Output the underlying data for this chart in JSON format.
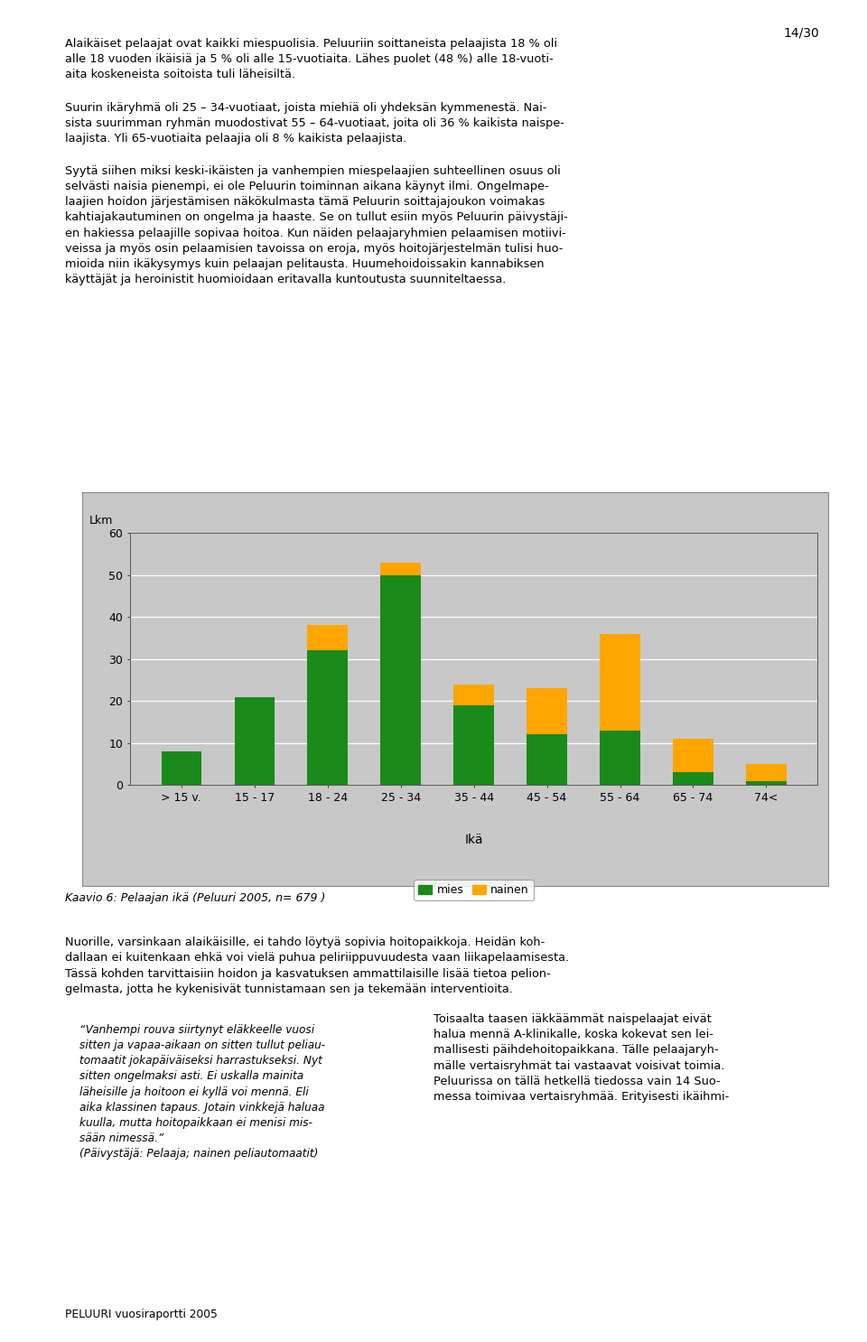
{
  "categories": [
    "> 15 v.",
    "15 - 17",
    "18 - 24",
    "25 - 34",
    "35 - 44",
    "45 - 54",
    "55 - 64",
    "65 - 74",
    "74<"
  ],
  "mies": [
    8,
    21,
    32,
    50,
    19,
    12,
    13,
    3,
    1
  ],
  "nainen": [
    0,
    0,
    6,
    3,
    5,
    11,
    23,
    8,
    4
  ],
  "color_mies": "#1a8a1a",
  "color_nainen": "#ffa500",
  "ylabel": "Lkm",
  "xlabel": "Ikä",
  "ylim_max": 60,
  "yticks": [
    0,
    10,
    20,
    30,
    40,
    50,
    60
  ],
  "legend_mies": "mies",
  "legend_nainen": "nainen",
  "chart_bg": "#c8c8c8",
  "bar_width": 0.55,
  "caption": "Kaavio 6: Pelaajan ikä (Peluuri 2005, n= 679 )",
  "page_num": "14/30",
  "footer": "PELUURI vuosiraportti 2005",
  "yellow_bg": "#ffffa0",
  "white_bg": "#ffffff",
  "text_color": "#000000"
}
